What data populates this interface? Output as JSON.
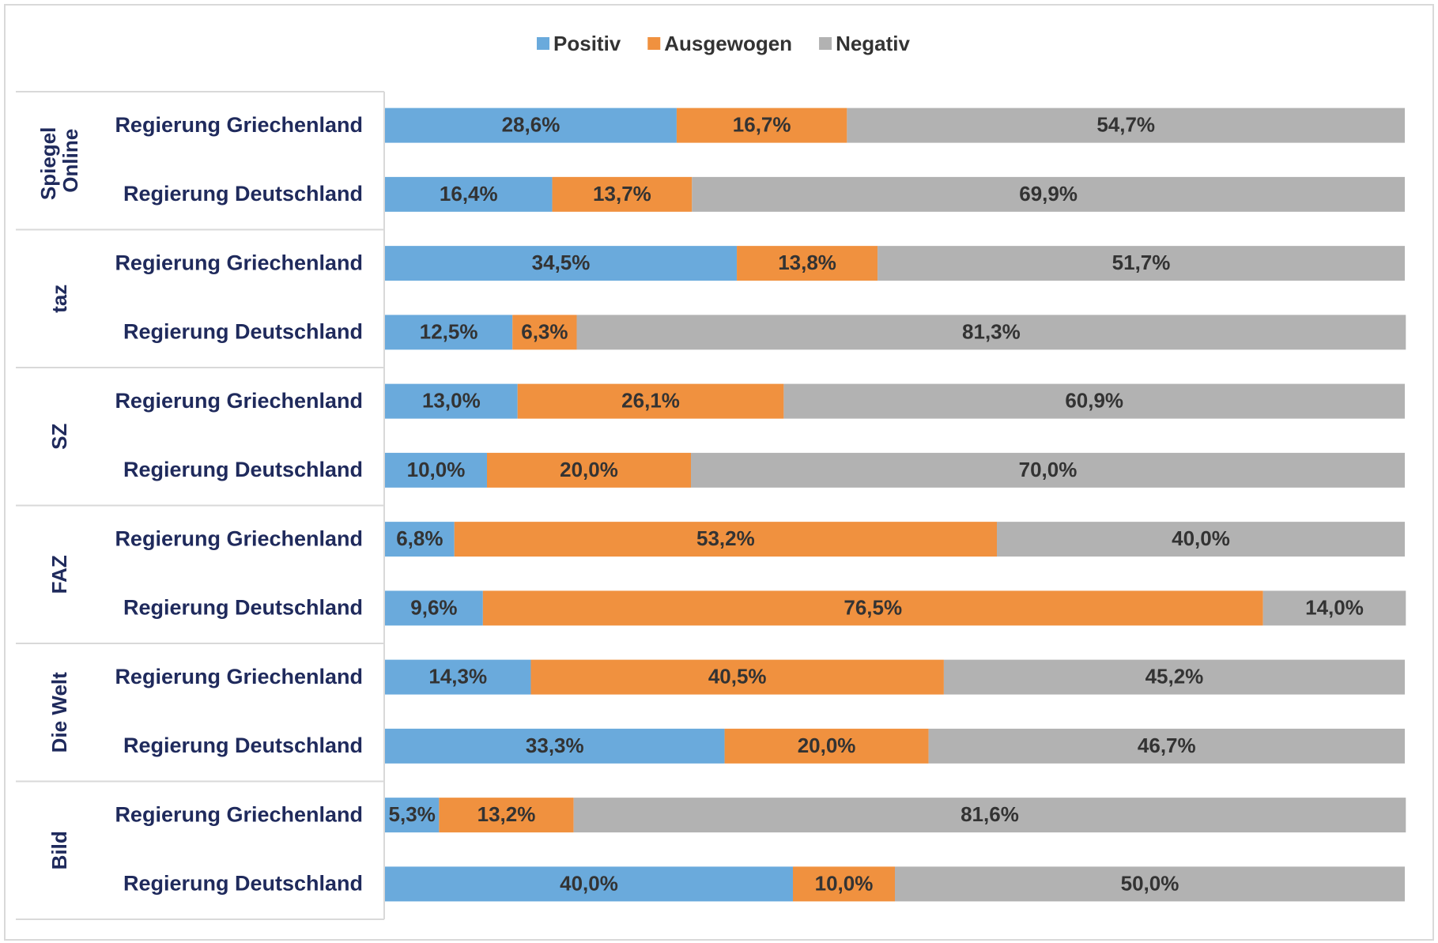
{
  "chart_data": {
    "type": "stacked_barh",
    "groups": [
      {
        "name": "Spiegel Online",
        "categories": [
          "Regierung Griechenland",
          "Regierung Deutschland"
        ]
      },
      {
        "name": "taz",
        "categories": [
          "Regierung Griechenland",
          "Regierung Deutschland"
        ]
      },
      {
        "name": "SZ",
        "categories": [
          "Regierung Griechenland",
          "Regierung Deutschland"
        ]
      },
      {
        "name": "FAZ",
        "categories": [
          "Regierung Griechenland",
          "Regierung Deutschland"
        ]
      },
      {
        "name": "Die Welt",
        "categories": [
          "Regierung Griechenland",
          "Regierung Deutschland"
        ]
      },
      {
        "name": "Bild",
        "categories": [
          "Regierung Griechenland",
          "Regierung Deutschland"
        ]
      }
    ],
    "series": [
      {
        "name": "Positiv",
        "color": "#6aaadc",
        "values": [
          28.6,
          16.4,
          34.5,
          12.5,
          13.0,
          10.0,
          6.8,
          9.6,
          14.3,
          33.3,
          5.3,
          40.0
        ],
        "value_labels": [
          "28,6%",
          "16,4%",
          "34,5%",
          "12,5%",
          "13,0%",
          "10,0%",
          "6,8%",
          "9,6%",
          "14,3%",
          "33,3%",
          "5,3%",
          "40,0%"
        ]
      },
      {
        "name": "Ausgewogen",
        "color": "#f0913f",
        "values": [
          16.7,
          13.7,
          13.8,
          6.3,
          26.1,
          20.0,
          53.2,
          76.5,
          40.5,
          20.0,
          13.2,
          10.0
        ],
        "value_labels": [
          "16,7%",
          "13,7%",
          "13,8%",
          "6,3%",
          "26,1%",
          "20,0%",
          "53,2%",
          "76,5%",
          "40,5%",
          "20,0%",
          "13,2%",
          "10,0%"
        ]
      },
      {
        "name": "Negativ",
        "color": "#b2b2b2",
        "values": [
          54.7,
          69.9,
          51.7,
          81.3,
          60.9,
          70.0,
          40.0,
          14.0,
          45.2,
          46.7,
          81.6,
          50.0
        ],
        "value_labels": [
          "54,7%",
          "69,9%",
          "51,7%",
          "81,3%",
          "60,9%",
          "70,0%",
          "40,0%",
          "14,0%",
          "45,2%",
          "46,7%",
          "81,6%",
          "50,0%"
        ]
      }
    ],
    "xlim": [
      0,
      100
    ],
    "legend": "top"
  }
}
